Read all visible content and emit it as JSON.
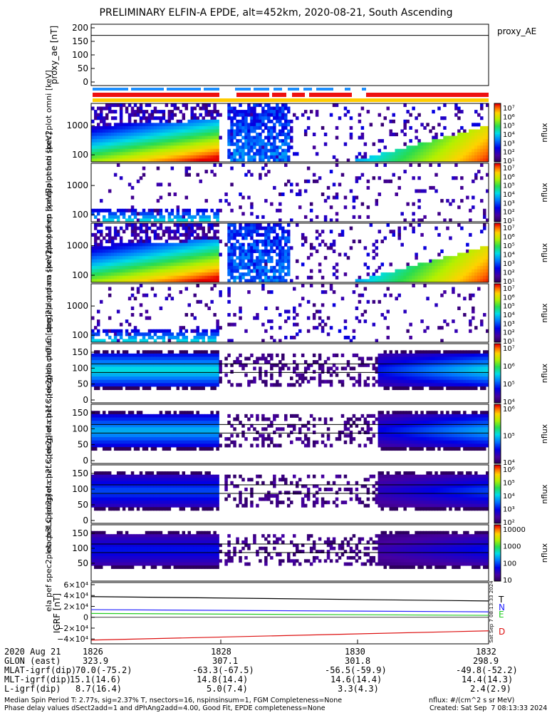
{
  "title": "PRELIMINARY ELFIN-A EPDE, alt=452km, 2020-08-21, South Ascending",
  "colors": {
    "blue_bar": "#1e90ff",
    "red_bar": "#ee1111",
    "yellow_bar": "#ffcc00",
    "grf_T": "#000000",
    "grf_N": "#2222ff",
    "grf_E": "#22cc22",
    "grf_D": "#dd1111"
  },
  "chart_data": [
    {
      "type": "line",
      "ylabel": "proxy_ae [nT]",
      "legend": "proxy_AE",
      "yticks": [
        "200",
        "150",
        "100",
        "50",
        "0"
      ],
      "ylim": [
        0,
        200
      ],
      "x": [
        "1826",
        "1832"
      ],
      "values": [
        172,
        172
      ]
    },
    {
      "type": "heatmap",
      "ylabel": "ela pef en spec2plot omni [keV]",
      "yticks": [
        "1000",
        "100"
      ],
      "colorbar_label": "nflux",
      "colorbar_ticks": [
        "10^7",
        "10^6",
        "10^5",
        "10^4",
        "10^3",
        "10^2",
        "10^1"
      ]
    },
    {
      "type": "heatmap",
      "ylabel": "ela pef en spec2plot anti [keV]",
      "yticks": [
        "1000",
        "100"
      ],
      "colorbar_label": "nflux",
      "colorbar_ticks": [
        "10^7",
        "10^6",
        "10^5",
        "10^4",
        "10^3",
        "10^2",
        "10^1"
      ]
    },
    {
      "type": "heatmap",
      "ylabel": "ela pef en spec2plot perp [keV]",
      "yticks": [
        "1000",
        "100"
      ],
      "colorbar_label": "nflux",
      "colorbar_ticks": [
        "10^7",
        "10^6",
        "10^5",
        "10^4",
        "10^3",
        "10^2",
        "10^1"
      ]
    },
    {
      "type": "heatmap",
      "ylabel": "ela pef en spec2plot para [keV]",
      "yticks": [
        "1000",
        "100"
      ],
      "colorbar_label": "nflux",
      "colorbar_ticks": [
        "10^7",
        "10^6",
        "10^5",
        "10^4",
        "10^3",
        "10^2",
        "10^1"
      ]
    },
    {
      "type": "heatmap",
      "ylabel": "ela pef spec2plot ch0LC [deg]",
      "yticks": [
        "150",
        "100",
        "50",
        "0"
      ],
      "colorbar_label": "nflux",
      "colorbar_ticks": [
        "10^7",
        "10^6",
        "10^5",
        "10^4"
      ]
    },
    {
      "type": "heatmap",
      "ylabel": "ela pef spec2plot ch1LC [deg]",
      "yticks": [
        "150",
        "100",
        "50",
        "0"
      ],
      "colorbar_label": "nflux",
      "colorbar_ticks": [
        "10^6",
        "10^5",
        "10^4"
      ]
    },
    {
      "type": "heatmap",
      "ylabel": "ela pef spec2plot ch2LC [deg]",
      "yticks": [
        "150",
        "100",
        "50",
        "0"
      ],
      "colorbar_label": "nflux",
      "colorbar_ticks": [
        "10^6",
        "10^5",
        "10^4",
        "10^3",
        "10^2"
      ]
    },
    {
      "type": "heatmap",
      "ylabel": "ela pef spec2plot ch3LC [deg]",
      "yticks": [
        "150",
        "100",
        "50"
      ],
      "colorbar_label": "nflux",
      "colorbar_ticks": [
        "10000",
        "1000",
        "100",
        "10"
      ]
    },
    {
      "type": "line",
      "ylabel": "IGRF [nT]",
      "yticks": [
        "6×10^4",
        "4×10^4",
        "2×10^4",
        "0",
        "−2×10^4",
        "−4×10^4"
      ],
      "ylim": [
        -45000,
        60000
      ],
      "x": [
        "1826",
        "1832"
      ],
      "series": [
        {
          "name": "T",
          "values": [
            38000,
            30000
          ]
        },
        {
          "name": "N",
          "values": [
            14000,
            10000
          ]
        },
        {
          "name": "E",
          "values": [
            7000,
            3500
          ]
        },
        {
          "name": "D",
          "values": [
            -42000,
            -25000
          ]
        }
      ]
    }
  ],
  "side_stamp": "Sat Sep  7 08:13:33 2024",
  "footer": {
    "rows": [
      {
        "label": "2020 Aug 21",
        "cols": [
          "1826",
          "1828",
          "1830",
          "1832"
        ]
      },
      {
        "label": "GLON (east)",
        "cols": [
          "323.9",
          "307.1",
          "301.8",
          "298.9"
        ]
      },
      {
        "label": "MLAT-igrf(dip)",
        "cols": [
          "70.0(-75.2)",
          "-63.3(-67.5)",
          "-56.5(-59.9)",
          "-49.8(-52.2)"
        ]
      },
      {
        "label": "MLT-igrf(dip)",
        "cols": [
          "15.1(14.6)",
          "14.8(14.4)",
          "14.6(14.4)",
          "14.4(14.3)"
        ]
      },
      {
        "label": "L-igrf(dip)",
        "cols": [
          "8.7(16.4)",
          "5.0(7.4)",
          "3.3(4.3)",
          "2.4(2.9)"
        ]
      }
    ],
    "note1": "Median Spin Period T: 2.77s, sig=2.37% T, nsectors=16, nspinsinsum=1, FGM Completeness=None",
    "note2": "Phase delay values dSect2add=1 and dPhAng2add=4.00, Good Fit, EPDE completeness=None",
    "units": "nflux: #/(cm^2 s sr MeV)",
    "created": "Created: Sat Sep  7 08:13:33 2024"
  }
}
